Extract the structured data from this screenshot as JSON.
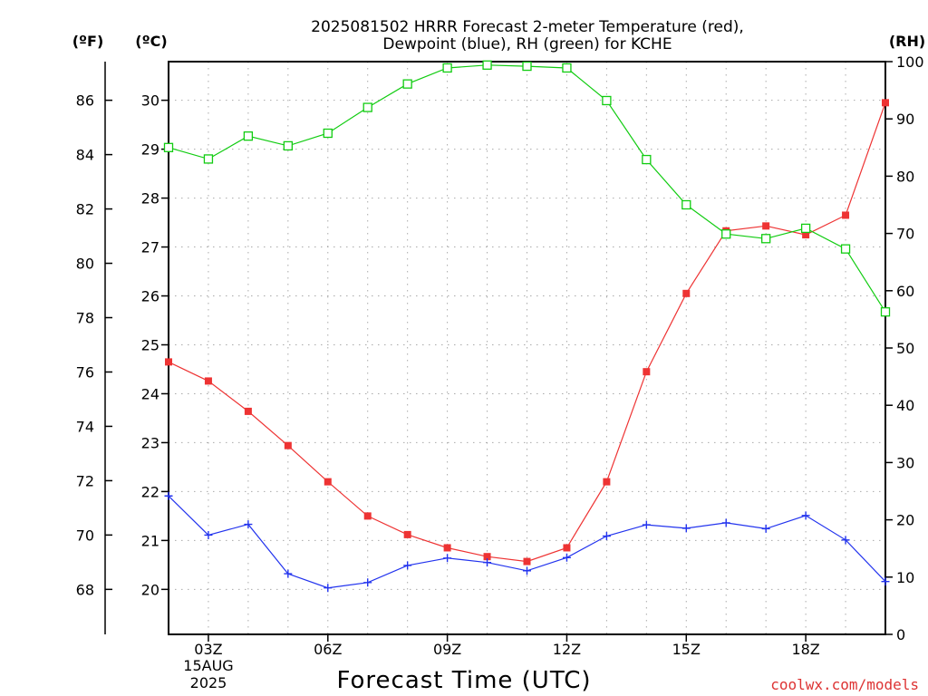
{
  "chart_data": {
    "type": "line",
    "title": [
      "2025081502 HRRR Forecast 2-meter Temperature (red),",
      "Dewpoint (blue), RH (green) for KCHE"
    ],
    "xlabel": "Forecast Time (UTC)",
    "date_label": [
      "15AUG",
      "2025"
    ],
    "units": {
      "fahrenheit": "(ºF)",
      "celsius": "(ºC)",
      "rh": "(RH)"
    },
    "x_hours": [
      2,
      3,
      4,
      5,
      6,
      7,
      8,
      9,
      10,
      11,
      12,
      13,
      14,
      15,
      16,
      17,
      18,
      19,
      20
    ],
    "x_ticks": [
      {
        "hour": 3,
        "label": "03Z"
      },
      {
        "hour": 6,
        "label": "06Z"
      },
      {
        "hour": 9,
        "label": "09Z"
      },
      {
        "hour": 12,
        "label": "12Z"
      },
      {
        "hour": 15,
        "label": "15Z"
      },
      {
        "hour": 18,
        "label": "18Z"
      }
    ],
    "xlim": [
      2,
      20
    ],
    "celsius_axis": {
      "ylim": [
        19.08,
        30.79
      ],
      "ticks": [
        20,
        21,
        22,
        23,
        24,
        25,
        26,
        27,
        28,
        29,
        30
      ]
    },
    "fahrenheit_axis": {
      "ticks": [
        68,
        70,
        72,
        74,
        76,
        78,
        80,
        82,
        84,
        86
      ]
    },
    "rh_axis": {
      "ylim": [
        0,
        100
      ],
      "ticks": [
        0,
        10,
        20,
        30,
        40,
        50,
        60,
        70,
        80,
        90,
        100
      ]
    },
    "grid": true,
    "series": [
      {
        "name": "Temperature",
        "axis": "celsius",
        "color": "#ee3333",
        "marker": "filled-square",
        "values": [
          24.65,
          24.26,
          23.64,
          22.94,
          22.2,
          21.5,
          21.12,
          20.85,
          20.67,
          20.57,
          20.85,
          22.2,
          24.45,
          26.05,
          27.33,
          27.43,
          27.25,
          27.65,
          29.95
        ]
      },
      {
        "name": "Dewpoint",
        "axis": "celsius",
        "color": "#2233ee",
        "marker": "plus",
        "values": [
          21.91,
          21.11,
          21.33,
          20.32,
          20.03,
          20.14,
          20.49,
          20.64,
          20.55,
          20.38,
          20.65,
          21.09,
          21.32,
          21.25,
          21.36,
          21.24,
          21.51,
          21.01,
          20.16
        ]
      },
      {
        "name": "RH",
        "axis": "rh",
        "color": "#11cc11",
        "marker": "open-square",
        "values": [
          85.0,
          83.0,
          87.0,
          85.3,
          87.5,
          92.0,
          96.1,
          98.9,
          99.4,
          99.2,
          98.9,
          93.2,
          82.9,
          75.0,
          69.9,
          69.1,
          70.9,
          67.3,
          56.3
        ]
      }
    ]
  },
  "credit": "coolwx.com/models",
  "credit_color": "#dd3333"
}
